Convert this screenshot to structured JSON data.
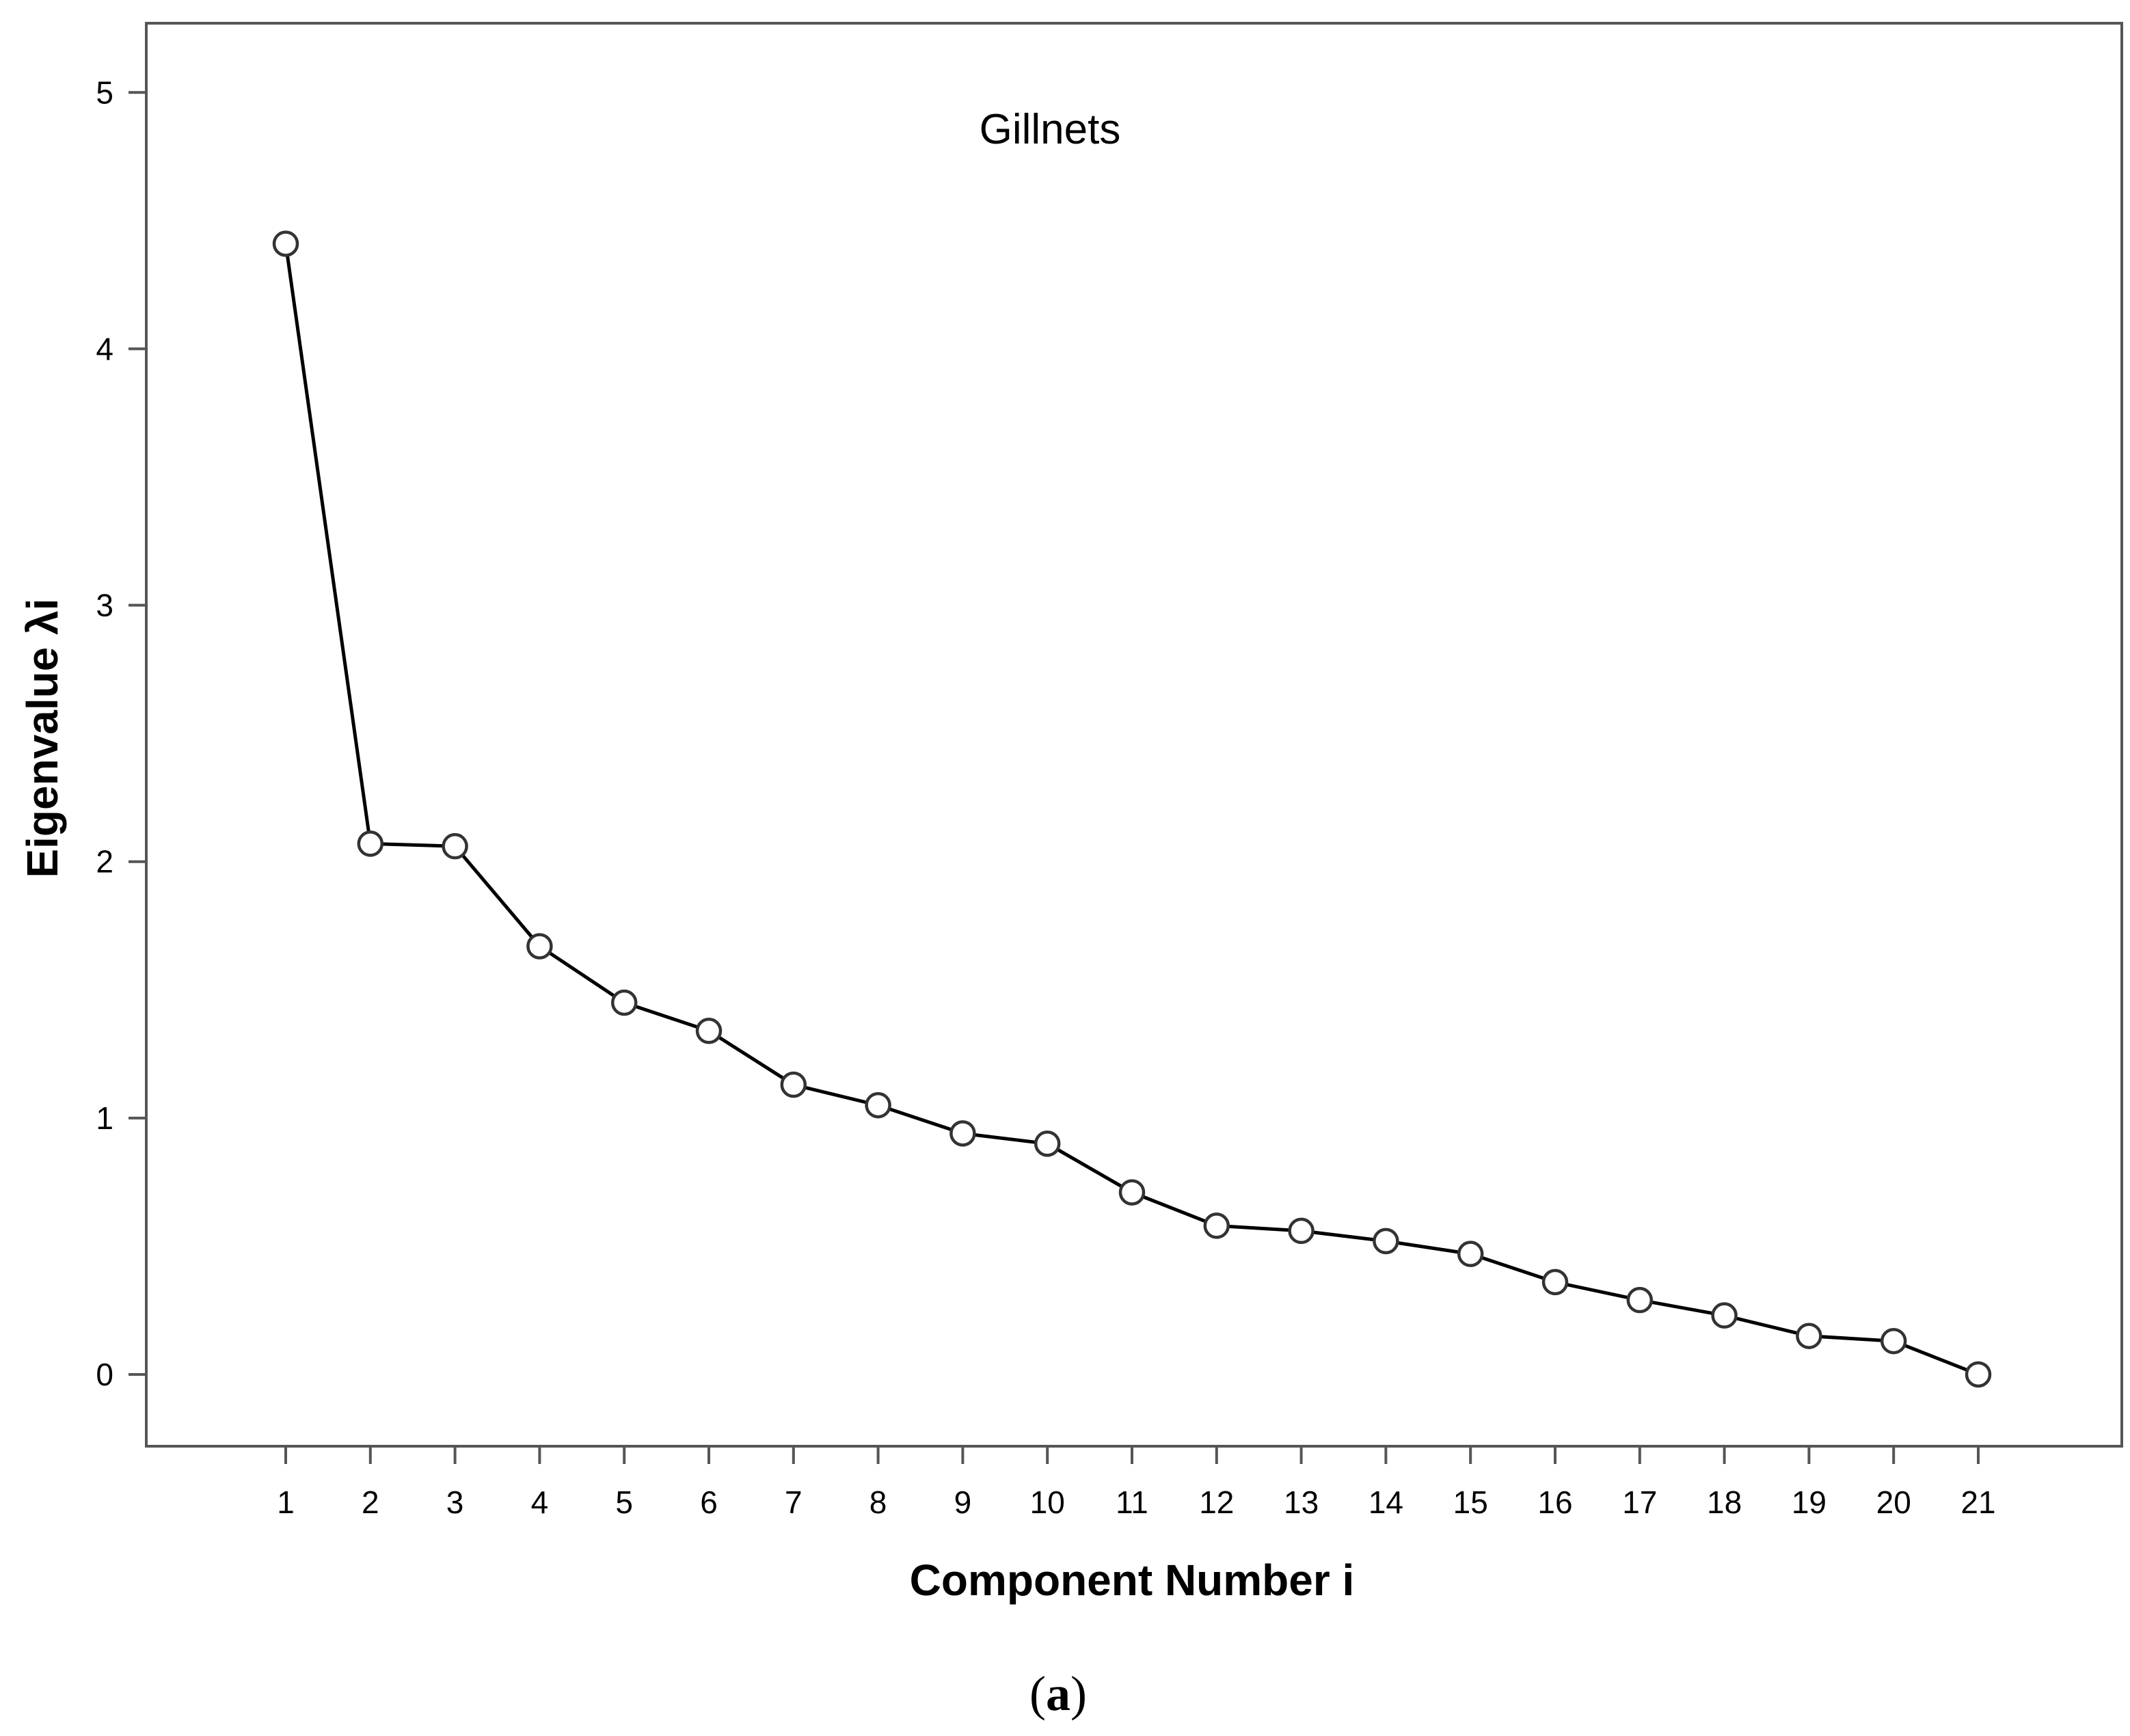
{
  "chart_data": {
    "type": "line",
    "title": "Gillnets",
    "xlabel": "Component Number i",
    "ylabel": "Eigenvalue λi",
    "x": [
      1,
      2,
      3,
      4,
      5,
      6,
      7,
      8,
      9,
      10,
      11,
      12,
      13,
      14,
      15,
      16,
      17,
      18,
      19,
      20,
      21
    ],
    "series": [
      {
        "values": [
          4.41,
          2.07,
          2.06,
          1.67,
          1.45,
          1.34,
          1.13,
          1.05,
          0.94,
          0.9,
          0.71,
          0.58,
          0.56,
          0.52,
          0.47,
          0.36,
          0.29,
          0.23,
          0.15,
          0.13,
          0.0
        ]
      }
    ],
    "ylim": [
      -0.28,
      5.27
    ],
    "y_ticks": [
      0,
      1,
      2,
      3,
      4,
      5
    ],
    "x_ticks": [
      "1",
      "2",
      "3",
      "4",
      "5",
      "6",
      "7",
      "8",
      "9",
      "10",
      "11",
      "12",
      "13",
      "14",
      "15",
      "16",
      "17",
      "18",
      "19",
      "20",
      "21"
    ],
    "marker": "open-circle",
    "grid": false,
    "legend": "none",
    "line_color": "#000000"
  },
  "panel_label": {
    "open": "(",
    "letter": "a",
    "close": ")"
  }
}
